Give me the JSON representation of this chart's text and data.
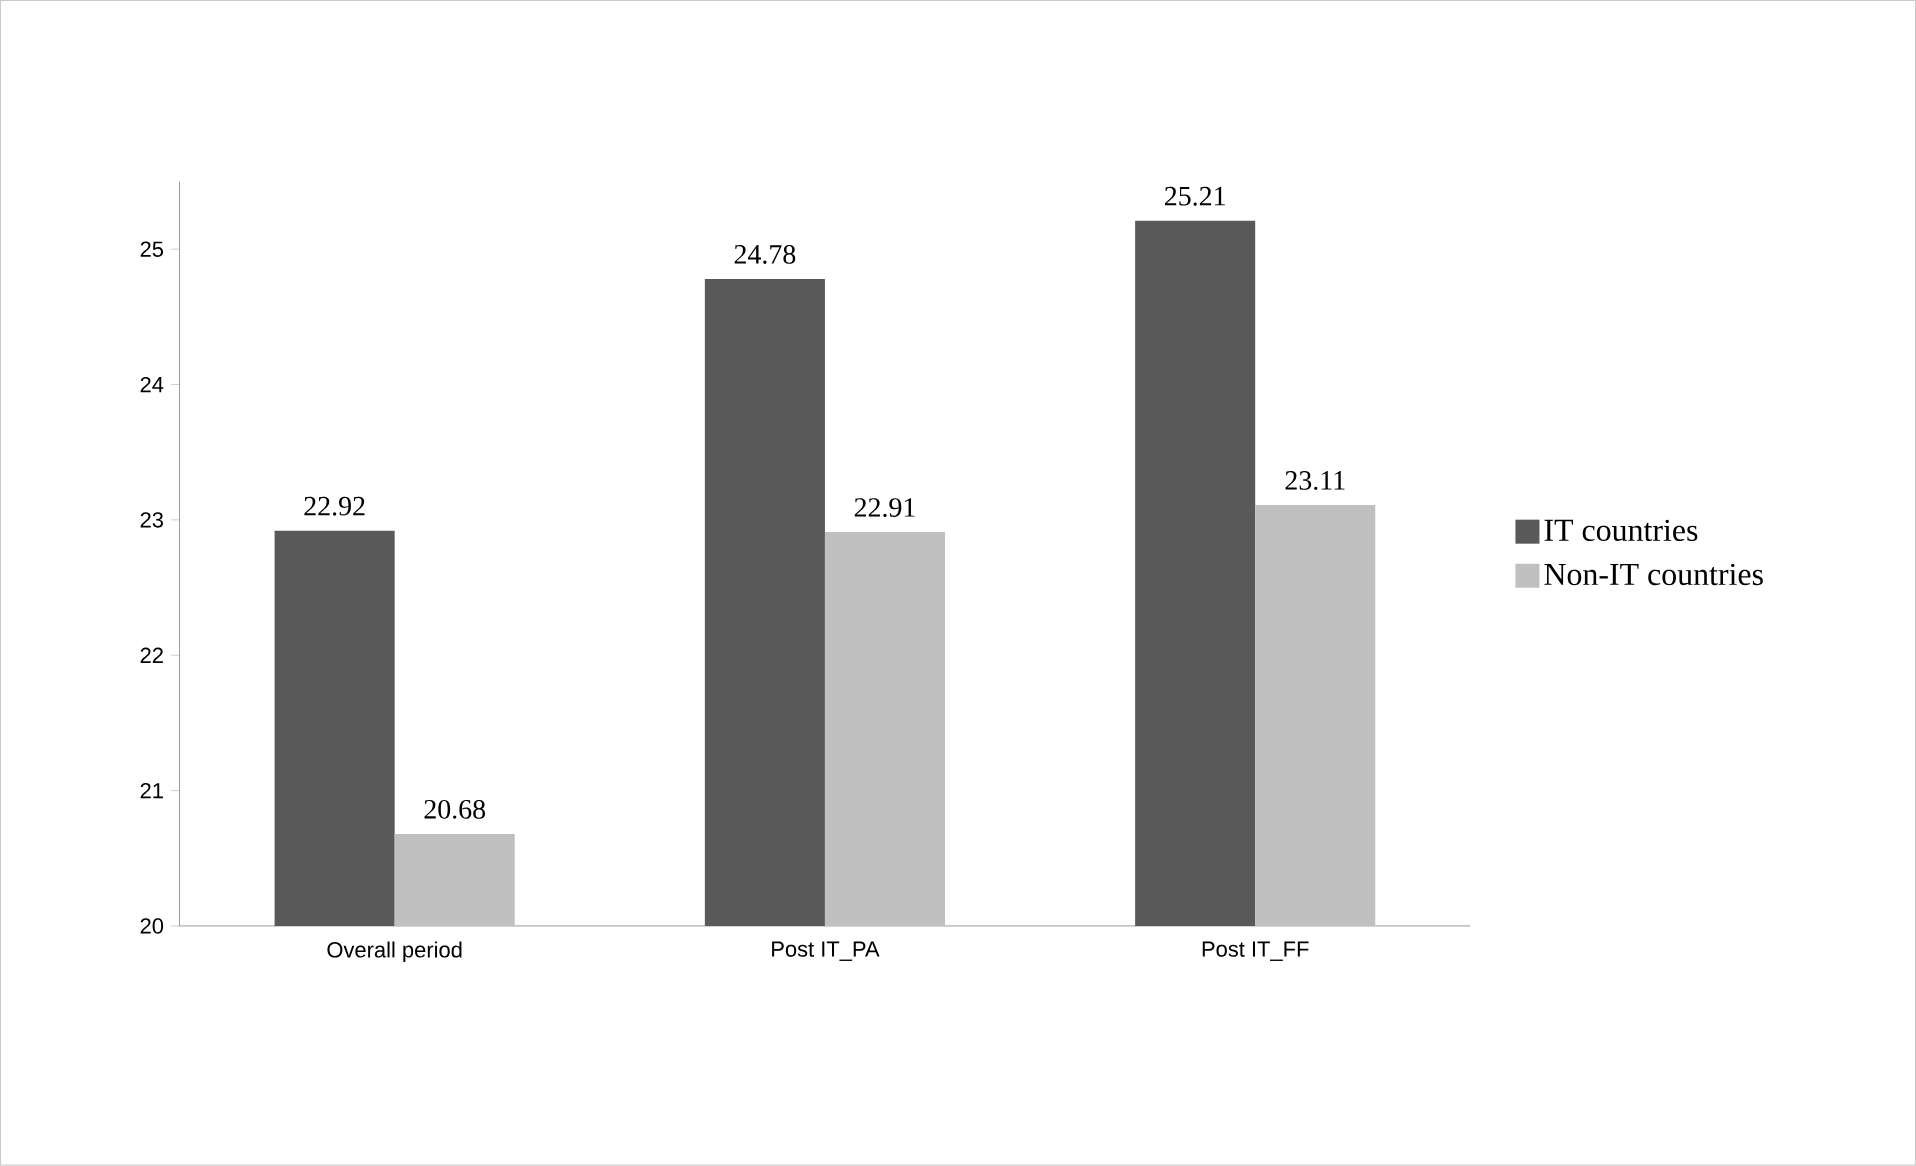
{
  "chart_data": {
    "type": "bar",
    "categories": [
      "Overall period",
      "Post IT_PA",
      "Post IT_FF"
    ],
    "series": [
      {
        "name": "IT countries",
        "color": "#595959",
        "values": [
          22.92,
          24.78,
          25.21
        ]
      },
      {
        "name": "Non-IT countries",
        "color": "#c0c0c0",
        "values": [
          20.68,
          22.91,
          23.11
        ]
      }
    ],
    "ylim": [
      20,
      25.5
    ],
    "yticks": [
      20,
      21,
      22,
      23,
      24,
      25
    ],
    "data_labels": true,
    "legend": "right"
  }
}
